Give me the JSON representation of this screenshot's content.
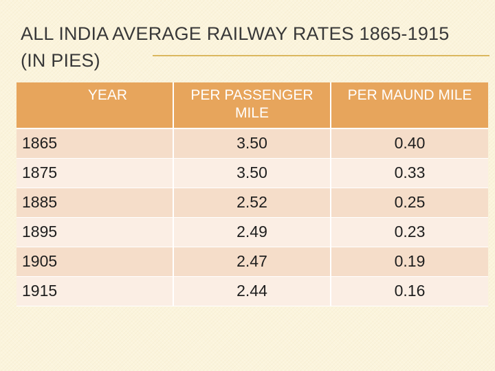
{
  "title": "ALL INDIA AVERAGE RAILWAY RATES 1865-1915 (IN PIES)",
  "colors": {
    "background": "#fbf4dc",
    "header_fill": "#e7a55c",
    "row_dark": "#f5ddc9",
    "row_light": "#fbeee4",
    "accent_rule": "#dbb75e"
  },
  "table": {
    "headers": {
      "year": "YEAR",
      "per_passenger_mile": "PER PASSENGER MILE",
      "per_maund_mile": "PER MAUND MILE"
    },
    "rows": [
      {
        "year": "1865",
        "per_passenger_mile": "3.50",
        "per_maund_mile": "0.40"
      },
      {
        "year": "1875",
        "per_passenger_mile": "3.50",
        "per_maund_mile": "0.33"
      },
      {
        "year": "1885",
        "per_passenger_mile": "2.52",
        "per_maund_mile": "0.25"
      },
      {
        "year": "1895",
        "per_passenger_mile": "2.49",
        "per_maund_mile": "0.23"
      },
      {
        "year": "1905",
        "per_passenger_mile": "2.47",
        "per_maund_mile": "0.19"
      },
      {
        "year": "1915",
        "per_passenger_mile": "2.44",
        "per_maund_mile": "0.16"
      }
    ]
  }
}
